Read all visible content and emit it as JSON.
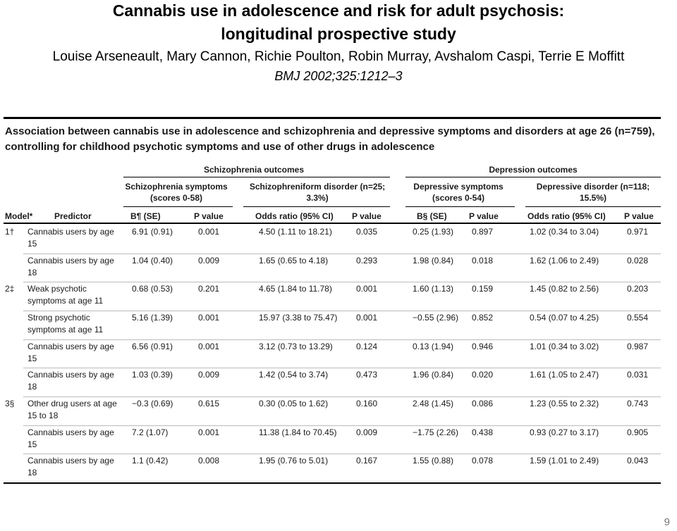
{
  "slide": {
    "title_line1": "Cannabis use in adolescence and risk for adult psychosis:",
    "title_line2": "longitudinal prospective study",
    "authors": "Louise Arseneault, Mary Cannon, Richie Poulton, Robin Murray, Avshalom Caspi, Terrie E Moffitt",
    "citation": "BMJ 2002;325:1212–3",
    "page_number": "9"
  },
  "table": {
    "caption": "Association between cannabis use in adolescence and schizophrenia and depressive symptoms and disorders at age 26 (n=759), controlling for childhood psychotic symptoms and use of other drugs in adolescence",
    "group_headers": [
      "Schizophrenia outcomes",
      "Depression outcomes"
    ],
    "sub_headers": [
      "Schizophrenia symptoms (scores 0-58)",
      "Schizophreniform disorder (n=25; 3.3%)",
      "Depressive symptoms (scores 0-54)",
      "Depressive disorder (n=118; 15.5%)"
    ],
    "columns": [
      "Model*",
      "Predictor",
      "B¶ (SE)",
      "P value",
      "Odds ratio (95% CI)",
      "P value",
      "B§ (SE)",
      "P value",
      "Odds ratio (95% CI)",
      "P value"
    ],
    "rows": [
      [
        "1†",
        "Cannabis users by age 15",
        "6.91 (0.91)",
        "0.001",
        "4.50 (1.11 to 18.21)",
        "0.035",
        "0.25 (1.93)",
        "0.897",
        "1.02 (0.34 to 3.04)",
        "0.971"
      ],
      [
        "",
        "Cannabis users by age 18",
        "1.04 (0.40)",
        "0.009",
        "1.65 (0.65 to 4.18)",
        "0.293",
        "1.98 (0.84)",
        "0.018",
        "1.62 (1.06 to 2.49)",
        "0.028"
      ],
      [
        "2‡",
        "Weak psychotic symptoms at age 11",
        "0.68 (0.53)",
        "0.201",
        "4.65 (1.84 to 11.78)",
        "0.001",
        "1.60 (1.13)",
        "0.159",
        "1.45 (0.82 to 2.56)",
        "0.203"
      ],
      [
        "",
        "Strong psychotic symptoms at age 11",
        "5.16 (1.39)",
        "0.001",
        "15.97 (3.38 to 75.47)",
        "0.001",
        "−0.55 (2.96)",
        "0.852",
        "0.54 (0.07 to 4.25)",
        "0.554"
      ],
      [
        "",
        "Cannabis users by age 15",
        "6.56 (0.91)",
        "0.001",
        "3.12 (0.73 to 13.29)",
        "0.124",
        "0.13 (1.94)",
        "0.946",
        "1.01 (0.34 to 3.02)",
        "0.987"
      ],
      [
        "",
        "Cannabis users by age 18",
        "1.03 (0.39)",
        "0.009",
        "1.42 (0.54 to 3.74)",
        "0.473",
        "1.96 (0.84)",
        "0.020",
        "1.61 (1.05 to 2.47)",
        "0.031"
      ],
      [
        "3§",
        "Other drug users at age 15 to 18",
        "−0.3 (0.69)",
        "0.615",
        "0.30 (0.05 to 1.62)",
        "0.160",
        "2.48 (1.45)",
        "0.086",
        "1.23 (0.55 to 2.32)",
        "0.743"
      ],
      [
        "",
        "Cannabis users by age 15",
        "7.2 (1.07)",
        "0.001",
        "11.38 (1.84 to 70.45)",
        "0.009",
        "−1.75 (2.26)",
        "0.438",
        "0.93 (0.27 to 3.17)",
        "0.905"
      ],
      [
        "",
        "Cannabis users by age 18",
        "1.1 (0.42)",
        "0.008",
        "1.95 (0.76 to 5.01)",
        "0.167",
        "1.55 (0.88)",
        "0.078",
        "1.59 (1.01 to 2.49)",
        "0.043"
      ]
    ]
  }
}
